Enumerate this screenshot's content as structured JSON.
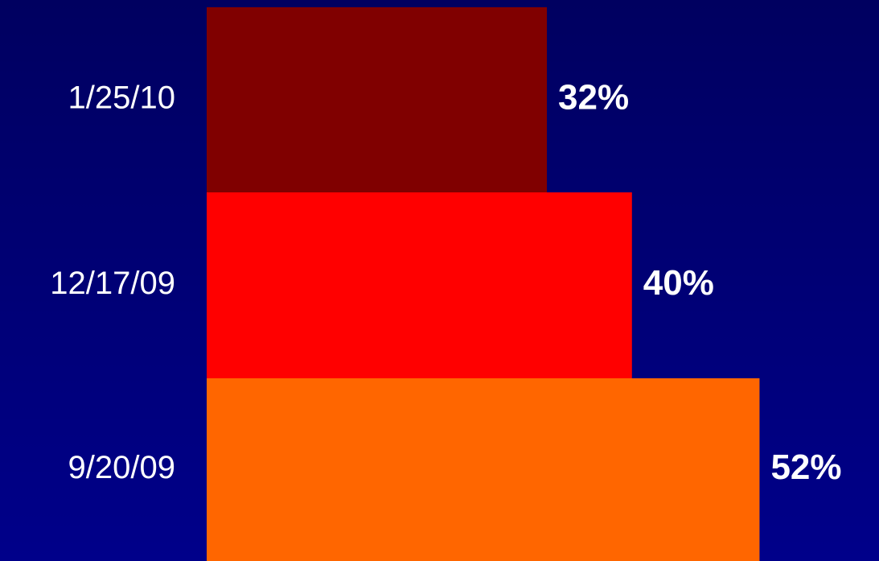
{
  "chart_data": {
    "type": "bar",
    "orientation": "horizontal",
    "categories": [
      "1/25/10",
      "12/17/09",
      "9/20/09"
    ],
    "values": [
      32,
      40,
      52
    ],
    "value_labels": [
      "32%",
      "40%",
      "52%"
    ],
    "unit": "%",
    "bar_colors": [
      "#800000",
      "#ff0000",
      "#ff6600"
    ],
    "background_color": "#000080",
    "label_color": "#ffffff",
    "grid": false,
    "legend": "none"
  }
}
